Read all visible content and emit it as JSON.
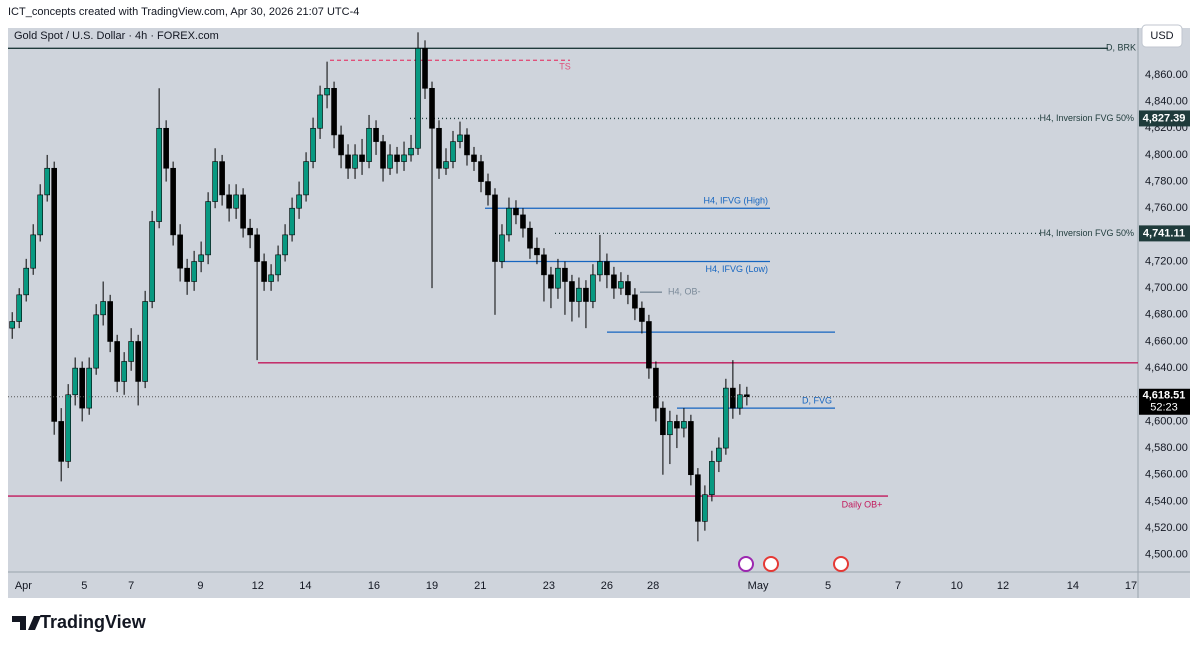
{
  "header": {
    "attribution": "ICT_concepts created with TradingView.com, Apr 30, 2026 21:07 UTC-4",
    "currency": "USD"
  },
  "footer": {
    "brand": "TradingView"
  },
  "chart_data": {
    "type": "candlestick",
    "title": "Gold Spot / U.S. Dollar · 4h · FOREX.com",
    "up_color": "#089981",
    "down_color": "#000000",
    "wick_color": "#000000",
    "x": [
      0,
      1,
      2,
      3,
      4,
      5,
      6,
      7,
      8,
      9,
      10,
      11,
      12,
      13,
      14,
      15,
      16,
      17,
      18,
      19,
      20,
      21,
      22,
      23,
      24,
      25,
      26,
      27,
      28,
      29,
      30,
      31,
      32,
      33,
      34,
      35,
      36,
      37,
      38,
      39,
      40,
      41,
      42,
      43,
      44,
      45,
      46,
      47,
      48,
      49,
      50,
      51,
      52,
      53,
      54,
      55,
      56,
      57,
      58,
      59,
      60,
      61,
      62,
      63,
      64,
      65,
      66,
      67,
      68,
      69,
      70,
      71,
      72,
      73,
      74,
      75,
      76,
      77,
      78,
      79,
      80,
      81,
      82,
      83,
      84,
      85,
      86,
      87,
      88,
      89,
      90,
      91,
      92,
      93,
      94,
      95,
      96,
      97,
      98,
      99,
      100,
      101,
      102,
      103,
      104,
      105
    ],
    "open": [
      4670,
      4675,
      4695,
      4715,
      4740,
      4770,
      4790,
      4600,
      4570,
      4620,
      4640,
      4610,
      4640,
      4680,
      4690,
      4660,
      4630,
      4645,
      4660,
      4630,
      4690,
      4750,
      4820,
      4790,
      4740,
      4715,
      4705,
      4720,
      4725,
      4765,
      4795,
      4770,
      4760,
      4770,
      4745,
      4740,
      4720,
      4705,
      4710,
      4725,
      4740,
      4760,
      4770,
      4795,
      4820,
      4845,
      4850,
      4815,
      4800,
      4790,
      4800,
      4795,
      4820,
      4810,
      4790,
      4800,
      4795,
      4800,
      4805,
      4880,
      4850,
      4820,
      4790,
      4795,
      4810,
      4815,
      4800,
      4795,
      4780,
      4770,
      4720,
      4740,
      4760,
      4755,
      4745,
      4730,
      4725,
      4710,
      4700,
      4715,
      4705,
      4690,
      4700,
      4690,
      4710,
      4720,
      4710,
      4700,
      4705,
      4695,
      4685,
      4675,
      4640,
      4610,
      4590,
      4600,
      4595,
      4600,
      4560,
      4525,
      4545,
      4570,
      4580,
      4625,
      4610,
      4620
    ],
    "high": [
      4682,
      4700,
      4722,
      4748,
      4778,
      4800,
      4795,
      4610,
      4628,
      4648,
      4645,
      4648,
      4688,
      4705,
      4695,
      4665,
      4652,
      4670,
      4665,
      4698,
      4758,
      4850,
      4826,
      4795,
      4748,
      4722,
      4728,
      4735,
      4772,
      4805,
      4800,
      4778,
      4778,
      4775,
      4752,
      4745,
      4726,
      4718,
      4732,
      4748,
      4768,
      4780,
      4802,
      4828,
      4852,
      4870,
      4855,
      4822,
      4808,
      4808,
      4812,
      4830,
      4826,
      4815,
      4808,
      4806,
      4810,
      4815,
      4892,
      4886,
      4855,
      4826,
      4805,
      4818,
      4825,
      4820,
      4806,
      4800,
      4786,
      4775,
      4748,
      4768,
      4766,
      4760,
      4750,
      4738,
      4730,
      4716,
      4722,
      4720,
      4710,
      4708,
      4706,
      4718,
      4740,
      4726,
      4716,
      4712,
      4710,
      4700,
      4690,
      4680,
      4645,
      4615,
      4608,
      4605,
      4610,
      4605,
      4565,
      4552,
      4578,
      4588,
      4632,
      4646,
      4628,
      4626
    ],
    "low": [
      4662,
      4670,
      4690,
      4710,
      4735,
      4765,
      4590,
      4555,
      4565,
      4612,
      4600,
      4605,
      4635,
      4672,
      4652,
      4622,
      4620,
      4638,
      4612,
      4625,
      4685,
      4745,
      4780,
      4732,
      4705,
      4695,
      4698,
      4712,
      4718,
      4760,
      4762,
      4750,
      4752,
      4738,
      4730,
      4646,
      4698,
      4698,
      4705,
      4720,
      4735,
      4752,
      4765,
      4790,
      4812,
      4835,
      4805,
      4790,
      4782,
      4782,
      4785,
      4790,
      4800,
      4780,
      4785,
      4786,
      4788,
      4795,
      4800,
      4842,
      4700,
      4782,
      4785,
      4790,
      4805,
      4792,
      4788,
      4772,
      4762,
      4680,
      4715,
      4735,
      4748,
      4738,
      4722,
      4718,
      4690,
      4685,
      4692,
      4680,
      4675,
      4678,
      4670,
      4685,
      4705,
      4700,
      4692,
      4695,
      4688,
      4676,
      4666,
      4632,
      4600,
      4560,
      4568,
      4580,
      4588,
      4552,
      4510,
      4518,
      4540,
      4562,
      4575,
      4602,
      4605,
      4612
    ],
    "close": [
      4675,
      4695,
      4715,
      4740,
      4770,
      4790,
      4600,
      4570,
      4620,
      4640,
      4610,
      4640,
      4680,
      4690,
      4660,
      4630,
      4645,
      4660,
      4630,
      4690,
      4750,
      4820,
      4790,
      4740,
      4715,
      4705,
      4720,
      4725,
      4765,
      4795,
      4770,
      4760,
      4770,
      4745,
      4740,
      4720,
      4705,
      4710,
      4725,
      4740,
      4760,
      4770,
      4795,
      4820,
      4845,
      4850,
      4815,
      4800,
      4790,
      4800,
      4795,
      4820,
      4810,
      4790,
      4800,
      4795,
      4800,
      4805,
      4880,
      4850,
      4820,
      4790,
      4795,
      4810,
      4815,
      4800,
      4795,
      4780,
      4770,
      4720,
      4740,
      4760,
      4755,
      4745,
      4730,
      4725,
      4710,
      4700,
      4715,
      4705,
      4690,
      4700,
      4690,
      4710,
      4720,
      4710,
      4700,
      4705,
      4695,
      4685,
      4675,
      4640,
      4610,
      4590,
      4600,
      4595,
      4600,
      4560,
      4525,
      4545,
      4570,
      4580,
      4625,
      4610,
      4620,
      4618.51
    ],
    "xlim": [
      -0.6,
      160.9
    ],
    "xticks": [
      {
        "value": 1.6,
        "label": "Apr"
      },
      {
        "value": 10.3,
        "label": "5"
      },
      {
        "value": 17,
        "label": "7"
      },
      {
        "value": 26.9,
        "label": "9"
      },
      {
        "value": 35.1,
        "label": "12"
      },
      {
        "value": 41.9,
        "label": "14"
      },
      {
        "value": 51.7,
        "label": "16"
      },
      {
        "value": 60,
        "label": "19"
      },
      {
        "value": 66.9,
        "label": "21"
      },
      {
        "value": 76.7,
        "label": "23"
      },
      {
        "value": 85,
        "label": "26"
      },
      {
        "value": 91.6,
        "label": "28"
      },
      {
        "value": 106.6,
        "label": "May"
      },
      {
        "value": 116.6,
        "label": "5"
      },
      {
        "value": 126.6,
        "label": "7"
      },
      {
        "value": 135,
        "label": "10"
      },
      {
        "value": 141.6,
        "label": "12"
      },
      {
        "value": 151.6,
        "label": "14"
      },
      {
        "value": 159.9,
        "label": "17"
      }
    ],
    "ylim": [
      4487,
      4895.25
    ],
    "yticks": [
      {
        "value": 4500,
        "label": "4,500.00"
      },
      {
        "value": 4520,
        "label": "4,520.00"
      },
      {
        "value": 4540,
        "label": "4,540.00"
      },
      {
        "value": 4560,
        "label": "4,560.00"
      },
      {
        "value": 4580,
        "label": "4,580.00"
      },
      {
        "value": 4600,
        "label": "4,600.00"
      },
      {
        "value": 4620,
        "label": "4,620.00"
      },
      {
        "value": 4640,
        "label": "4,640.00"
      },
      {
        "value": 4660,
        "label": "4,660.00"
      },
      {
        "value": 4680,
        "label": "4,680.00"
      },
      {
        "value": 4700,
        "label": "4,700.00"
      },
      {
        "value": 4720,
        "label": "4,720.00"
      },
      {
        "value": 4740,
        "label": "4,740.00"
      },
      {
        "value": 4760,
        "label": "4,760.00"
      },
      {
        "value": 4780,
        "label": "4,780.00"
      },
      {
        "value": 4800,
        "label": "4,800.00"
      },
      {
        "value": 4820,
        "label": "4,820.00"
      },
      {
        "value": 4840,
        "label": "4,840.00"
      },
      {
        "value": 4860,
        "label": "4,860.00"
      }
    ],
    "grid": false,
    "last_price": {
      "value": 4618.51,
      "label": "4,618.51",
      "countdown": "52:23"
    },
    "levels": [
      {
        "label": "D, BRK",
        "price": 4880,
        "color": "#1f3b3b",
        "style": "solid"
      },
      {
        "label": "TS",
        "price": 4871,
        "color": "#e0507a",
        "style": "dashed"
      },
      {
        "label": "H4, Inversion FVG 50%",
        "price": 4827.39,
        "price_label": "4,827.39",
        "color": "#1f3b3b",
        "style": "dotted"
      },
      {
        "label": "H4, IFVG (High)",
        "price": 4760,
        "color": "#1565c0",
        "style": "solid"
      },
      {
        "label": "H4, Inversion FVG 50%",
        "price": 4741.11,
        "price_label": "4,741.11",
        "color": "#1f3b3b",
        "style": "dotted"
      },
      {
        "label": "H4, IFVG (Low)",
        "price": 4720,
        "color": "#1565c0",
        "style": "solid"
      },
      {
        "label": "H4, OB-",
        "price": 4697,
        "color": "#7a8a99",
        "style": "solid"
      },
      {
        "price": 4667,
        "color": "#1565c0",
        "style": "solid"
      },
      {
        "price": 4644,
        "color": "#c2185b",
        "style": "solid"
      },
      {
        "label": "D, FVG",
        "price": 4610,
        "color": "#1565c0",
        "style": "solid"
      },
      {
        "label": "Daily OB+",
        "price": 4544,
        "color": "#c2185b",
        "style": "solid"
      }
    ]
  }
}
